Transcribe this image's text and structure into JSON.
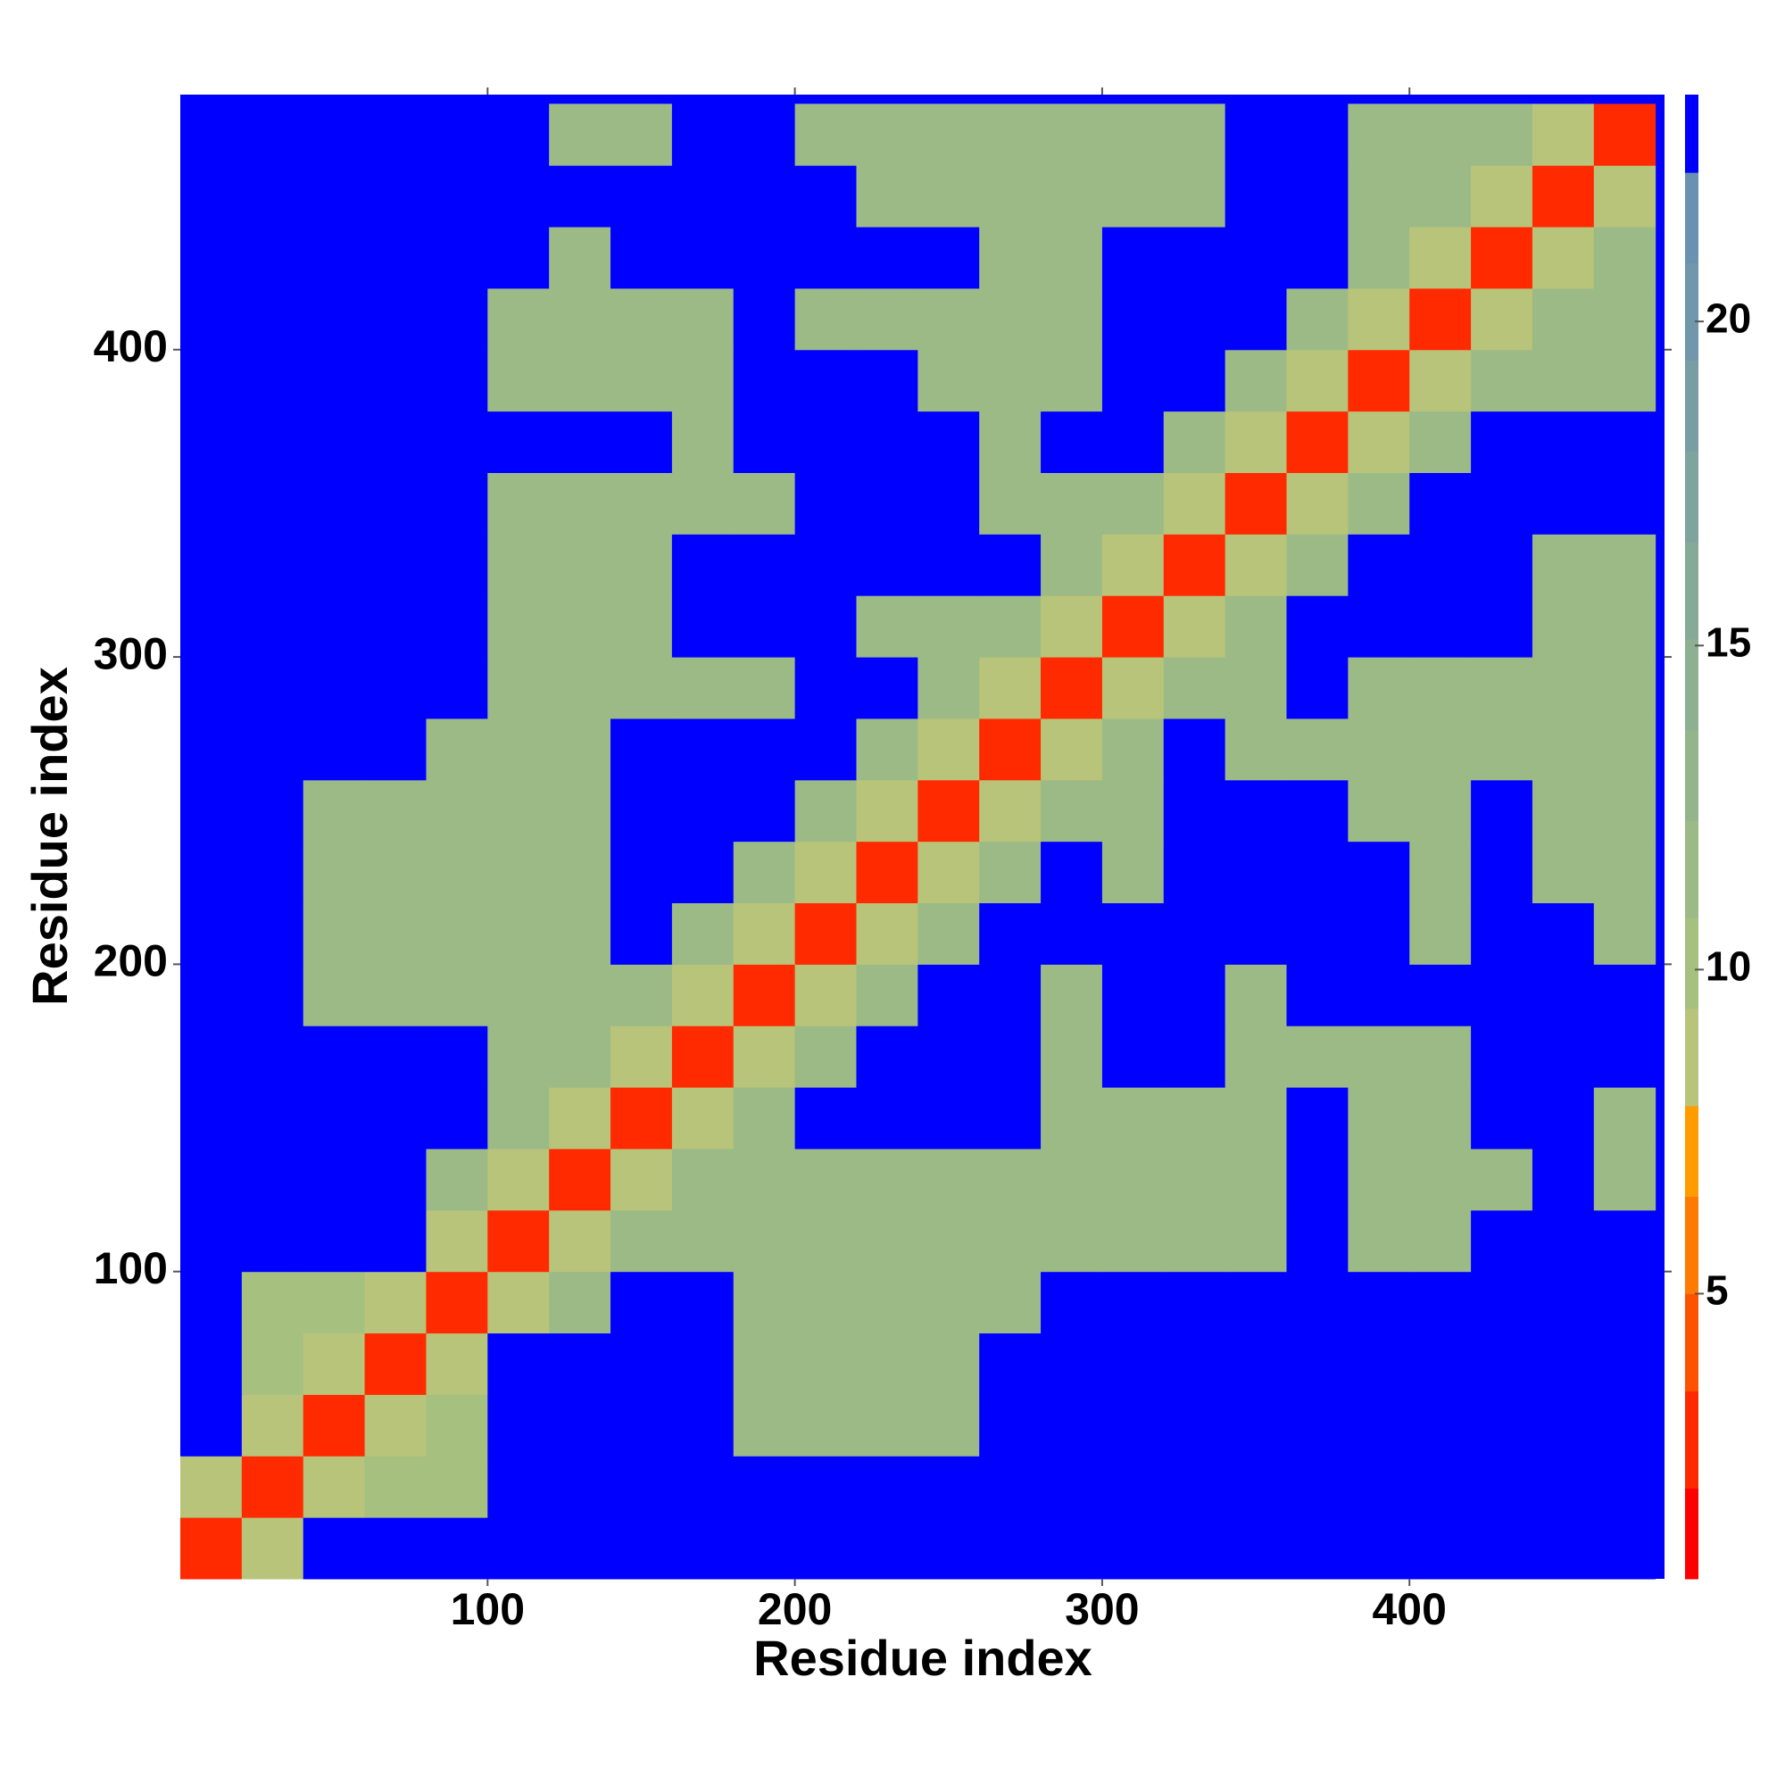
{
  "chart_data": {
    "type": "heatmap",
    "xlabel": "Residue index",
    "ylabel": "Residue index",
    "xlim": [
      0,
      483
    ],
    "ylim": [
      0,
      483
    ],
    "xticks": [
      100,
      200,
      300,
      400
    ],
    "yticks": [
      100,
      200,
      300,
      400
    ],
    "xbins": [
      0,
      20,
      40,
      60,
      80,
      100,
      120,
      140,
      160,
      180,
      200,
      220,
      240,
      260,
      280,
      300,
      320,
      340,
      360,
      380,
      400,
      420,
      440,
      460,
      480
    ],
    "ybins": [
      0,
      20,
      40,
      60,
      80,
      100,
      120,
      140,
      160,
      180,
      200,
      220,
      240,
      260,
      280,
      300,
      320,
      340,
      360,
      380,
      400,
      420,
      440,
      460,
      480
    ],
    "zlim": [
      0.6,
      23.5
    ],
    "cticks": [
      5,
      10,
      15,
      20
    ],
    "levels": [
      0.6,
      2.0,
      3.5,
      5.0,
      6.5,
      7.9,
      9.4,
      10.8,
      12.3,
      13.7,
      15.1,
      16.6,
      18.0,
      19.4,
      20.9,
      22.3,
      23.5
    ],
    "level_colors": [
      "#ff0000",
      "#ff2a00",
      "#ff5200",
      "#ff7a00",
      "#ff9c00",
      "#b8c47a",
      "#a6c080",
      "#9cba86",
      "#94b48c",
      "#8db092",
      "#86aa98",
      "#7fa49e",
      "#789ea4",
      "#7098aa",
      "#6a92b0",
      "#0000ff"
    ],
    "z": [
      [
        3,
        9,
        23.5,
        23.5,
        23.5,
        23.5,
        23.5,
        23.5,
        23.5,
        23.5,
        23.5,
        23.5,
        23.5,
        23.5,
        23.5,
        23.5,
        23.5,
        23.5,
        23.5,
        23.5,
        23.5,
        23.5,
        23.5,
        23.5
      ],
      [
        9,
        3,
        9,
        10,
        10,
        23.5,
        23.5,
        23.5,
        23.5,
        23.5,
        23.5,
        23.5,
        23.5,
        23.5,
        23.5,
        23.5,
        23.5,
        23.5,
        23.5,
        23.5,
        23.5,
        23.5,
        23.5,
        23.5
      ],
      [
        23.5,
        9,
        3,
        9,
        10,
        23.5,
        23.5,
        23.5,
        23.5,
        12,
        12,
        12,
        12,
        23.5,
        23.5,
        23.5,
        23.5,
        23.5,
        23.5,
        23.5,
        23.5,
        23.5,
        23.5,
        23.5
      ],
      [
        23.5,
        10,
        9,
        3,
        9,
        23.5,
        23.5,
        23.5,
        23.5,
        12,
        12,
        12,
        12,
        23.5,
        23.5,
        23.5,
        23.5,
        23.5,
        23.5,
        23.5,
        23.5,
        23.5,
        23.5,
        23.5
      ],
      [
        23.5,
        10,
        10,
        9,
        3,
        9,
        12,
        23.5,
        23.5,
        12,
        12,
        12,
        12,
        12,
        23.5,
        23.5,
        23.5,
        23.5,
        23.5,
        23.5,
        23.5,
        23.5,
        23.5,
        23.5
      ],
      [
        23.5,
        23.5,
        23.5,
        23.5,
        9,
        3,
        9,
        12,
        12,
        12,
        12,
        12,
        12,
        12,
        12,
        12,
        12,
        12,
        23.5,
        12,
        12,
        23.5,
        23.5,
        23.5
      ],
      [
        23.5,
        23.5,
        23.5,
        23.5,
        12,
        9,
        3,
        9,
        12,
        12,
        12,
        12,
        12,
        12,
        12,
        12,
        12,
        12,
        23.5,
        12,
        12,
        12,
        23.5,
        12
      ],
      [
        23.5,
        23.5,
        23.5,
        23.5,
        23.5,
        12,
        9,
        3,
        9,
        12,
        23.5,
        23.5,
        23.5,
        23.5,
        12,
        12,
        12,
        12,
        23.5,
        12,
        12,
        23.5,
        23.5,
        12
      ],
      [
        23.5,
        23.5,
        23.5,
        23.5,
        23.5,
        12,
        12,
        9,
        3,
        9,
        12,
        23.5,
        23.5,
        23.5,
        12,
        23.5,
        23.5,
        12,
        12,
        12,
        12,
        23.5,
        23.5,
        23.5
      ],
      [
        23.5,
        23.5,
        12,
        12,
        12,
        12,
        12,
        12,
        9,
        3,
        9,
        12,
        23.5,
        23.5,
        12,
        23.5,
        23.5,
        12,
        23.5,
        23.5,
        23.5,
        23.5,
        23.5,
        23.5
      ],
      [
        23.5,
        23.5,
        12,
        12,
        12,
        12,
        12,
        23.5,
        12,
        9,
        3,
        9,
        12,
        23.5,
        23.5,
        23.5,
        23.5,
        23.5,
        23.5,
        23.5,
        12,
        23.5,
        23.5,
        12
      ],
      [
        23.5,
        23.5,
        12,
        12,
        12,
        12,
        12,
        23.5,
        23.5,
        12,
        9,
        3,
        9,
        12,
        23.5,
        12,
        23.5,
        23.5,
        23.5,
        23.5,
        12,
        23.5,
        12,
        12
      ],
      [
        23.5,
        23.5,
        12,
        12,
        12,
        12,
        12,
        23.5,
        23.5,
        23.5,
        12,
        9,
        3,
        9,
        12,
        12,
        23.5,
        23.5,
        23.5,
        12,
        12,
        23.5,
        12,
        12
      ],
      [
        23.5,
        23.5,
        23.5,
        23.5,
        12,
        12,
        12,
        23.5,
        23.5,
        23.5,
        23.5,
        12,
        9,
        3,
        9,
        12,
        23.5,
        12,
        12,
        12,
        12,
        12,
        12,
        12
      ],
      [
        23.5,
        23.5,
        23.5,
        23.5,
        23.5,
        12,
        12,
        12,
        12,
        12,
        23.5,
        23.5,
        12,
        9,
        3,
        9,
        12,
        12,
        23.5,
        12,
        12,
        12,
        12,
        12
      ],
      [
        23.5,
        23.5,
        23.5,
        23.5,
        23.5,
        12,
        12,
        12,
        23.5,
        23.5,
        23.5,
        12,
        12,
        12,
        9,
        3,
        9,
        12,
        23.5,
        23.5,
        23.5,
        23.5,
        12,
        12
      ],
      [
        23.5,
        23.5,
        23.5,
        23.5,
        23.5,
        12,
        12,
        12,
        23.5,
        23.5,
        23.5,
        23.5,
        23.5,
        23.5,
        12,
        9,
        3,
        9,
        12,
        23.5,
        23.5,
        23.5,
        12,
        12
      ],
      [
        23.5,
        23.5,
        23.5,
        23.5,
        23.5,
        12,
        12,
        12,
        12,
        12,
        23.5,
        23.5,
        23.5,
        12,
        12,
        12,
        9,
        3,
        9,
        12,
        23.5,
        23.5,
        23.5,
        23.5
      ],
      [
        23.5,
        23.5,
        23.5,
        23.5,
        23.5,
        23.5,
        23.5,
        23.5,
        12,
        23.5,
        23.5,
        23.5,
        23.5,
        12,
        23.5,
        23.5,
        12,
        9,
        3,
        9,
        12,
        23.5,
        23.5,
        23.5
      ],
      [
        23.5,
        23.5,
        23.5,
        23.5,
        23.5,
        12,
        12,
        12,
        12,
        23.5,
        23.5,
        23.5,
        12,
        12,
        12,
        23.5,
        23.5,
        12,
        9,
        3,
        9,
        12,
        12,
        12
      ],
      [
        23.5,
        23.5,
        23.5,
        23.5,
        23.5,
        12,
        12,
        12,
        12,
        23.5,
        12,
        12,
        12,
        12,
        12,
        23.5,
        23.5,
        23.5,
        12,
        9,
        3,
        9,
        12,
        12
      ],
      [
        23.5,
        23.5,
        23.5,
        23.5,
        23.5,
        23.5,
        12,
        23.5,
        23.5,
        23.5,
        23.5,
        23.5,
        23.5,
        12,
        12,
        23.5,
        23.5,
        23.5,
        23.5,
        12,
        9,
        3,
        9,
        12
      ],
      [
        23.5,
        23.5,
        23.5,
        23.5,
        23.5,
        23.5,
        23.5,
        23.5,
        23.5,
        23.5,
        23.5,
        12,
        12,
        12,
        12,
        12,
        12,
        23.5,
        23.5,
        12,
        12,
        9,
        3,
        9
      ],
      [
        23.5,
        23.5,
        23.5,
        23.5,
        23.5,
        23.5,
        12,
        12,
        23.5,
        23.5,
        12,
        12,
        12,
        12,
        12,
        12,
        12,
        23.5,
        23.5,
        12,
        12,
        12,
        9,
        3
      ]
    ]
  }
}
